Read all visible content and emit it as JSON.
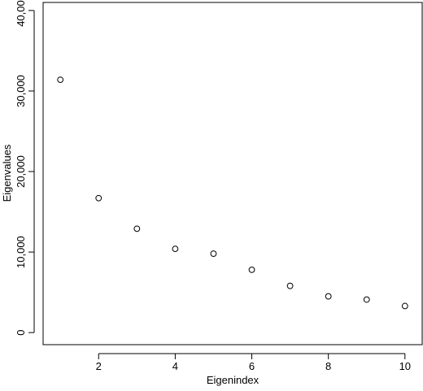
{
  "chart_data": {
    "type": "scatter",
    "xlabel": "Eigenindex",
    "ylabel": "Eigenvalues",
    "x_ticks": [
      2,
      4,
      6,
      8,
      10
    ],
    "x_tick_labels": [
      "2",
      "4",
      "6",
      "8",
      "10"
    ],
    "y_ticks": [
      0,
      10000,
      20000,
      30000,
      40000
    ],
    "y_tick_labels": [
      "0",
      "10,000",
      "20,000",
      "30,000",
      "40,000"
    ],
    "xlim": [
      0.55,
      10.45
    ],
    "ylim": [
      -1500,
      41000
    ],
    "grid": false,
    "marker": "open-circle",
    "points": [
      {
        "x": 1,
        "y": 31400
      },
      {
        "x": 2,
        "y": 16700
      },
      {
        "x": 3,
        "y": 12900
      },
      {
        "x": 4,
        "y": 10400
      },
      {
        "x": 5,
        "y": 9800
      },
      {
        "x": 6,
        "y": 7800
      },
      {
        "x": 7,
        "y": 5800
      },
      {
        "x": 8,
        "y": 4500
      },
      {
        "x": 9,
        "y": 4100
      },
      {
        "x": 10,
        "y": 3300
      }
    ]
  }
}
